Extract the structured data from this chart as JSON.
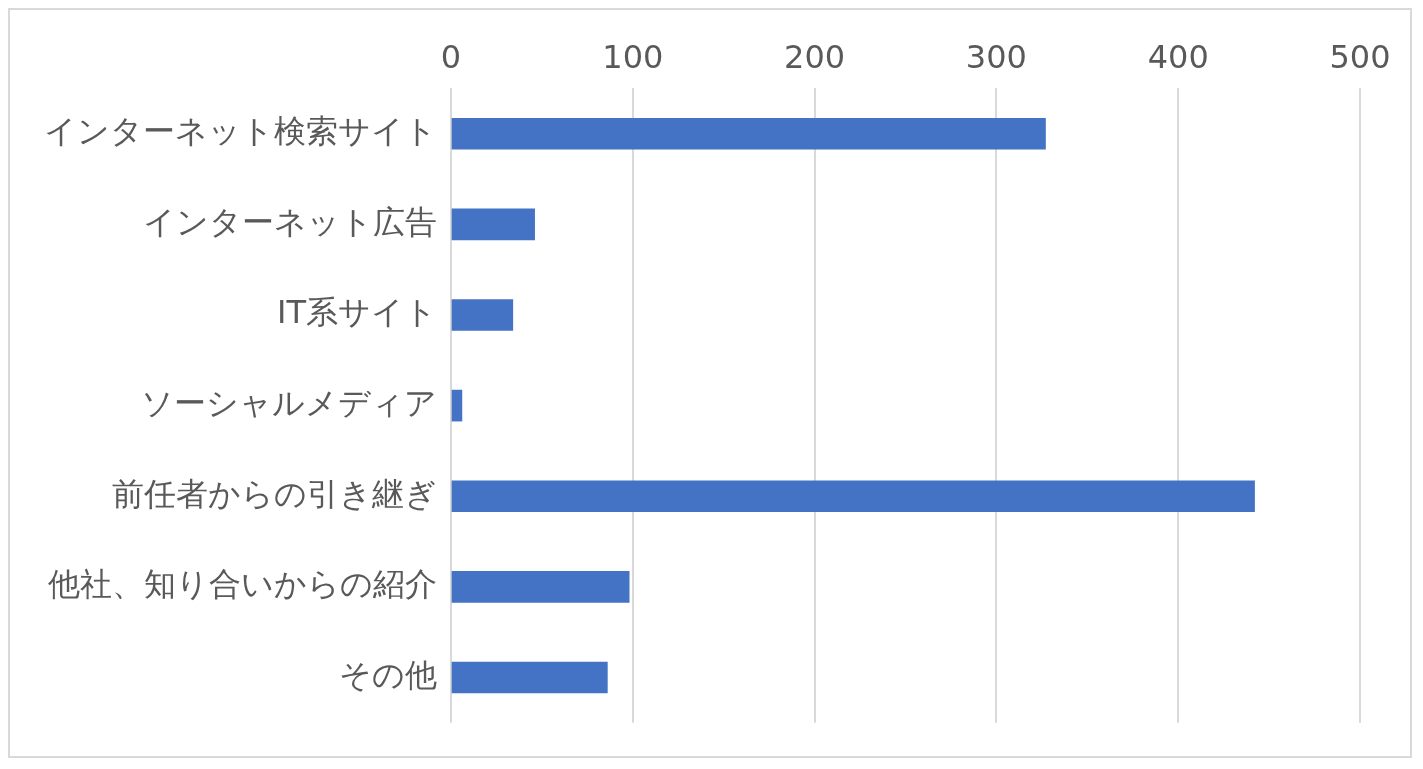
{
  "chart_data": {
    "type": "bar",
    "orientation": "horizontal",
    "categories": [
      "インターネット検索サイト",
      "インターネット広告",
      "IT系サイト",
      "ソーシャルメディア",
      "前任者からの引き継ぎ",
      "他社、知り合いからの紹介",
      "その他"
    ],
    "values": [
      327,
      46,
      34,
      6,
      442,
      98,
      86
    ],
    "color": "#4472c4",
    "xlim": [
      0,
      500
    ],
    "xticks": [
      0,
      100,
      200,
      300,
      400,
      500
    ],
    "grid": "x",
    "legend": false
  }
}
